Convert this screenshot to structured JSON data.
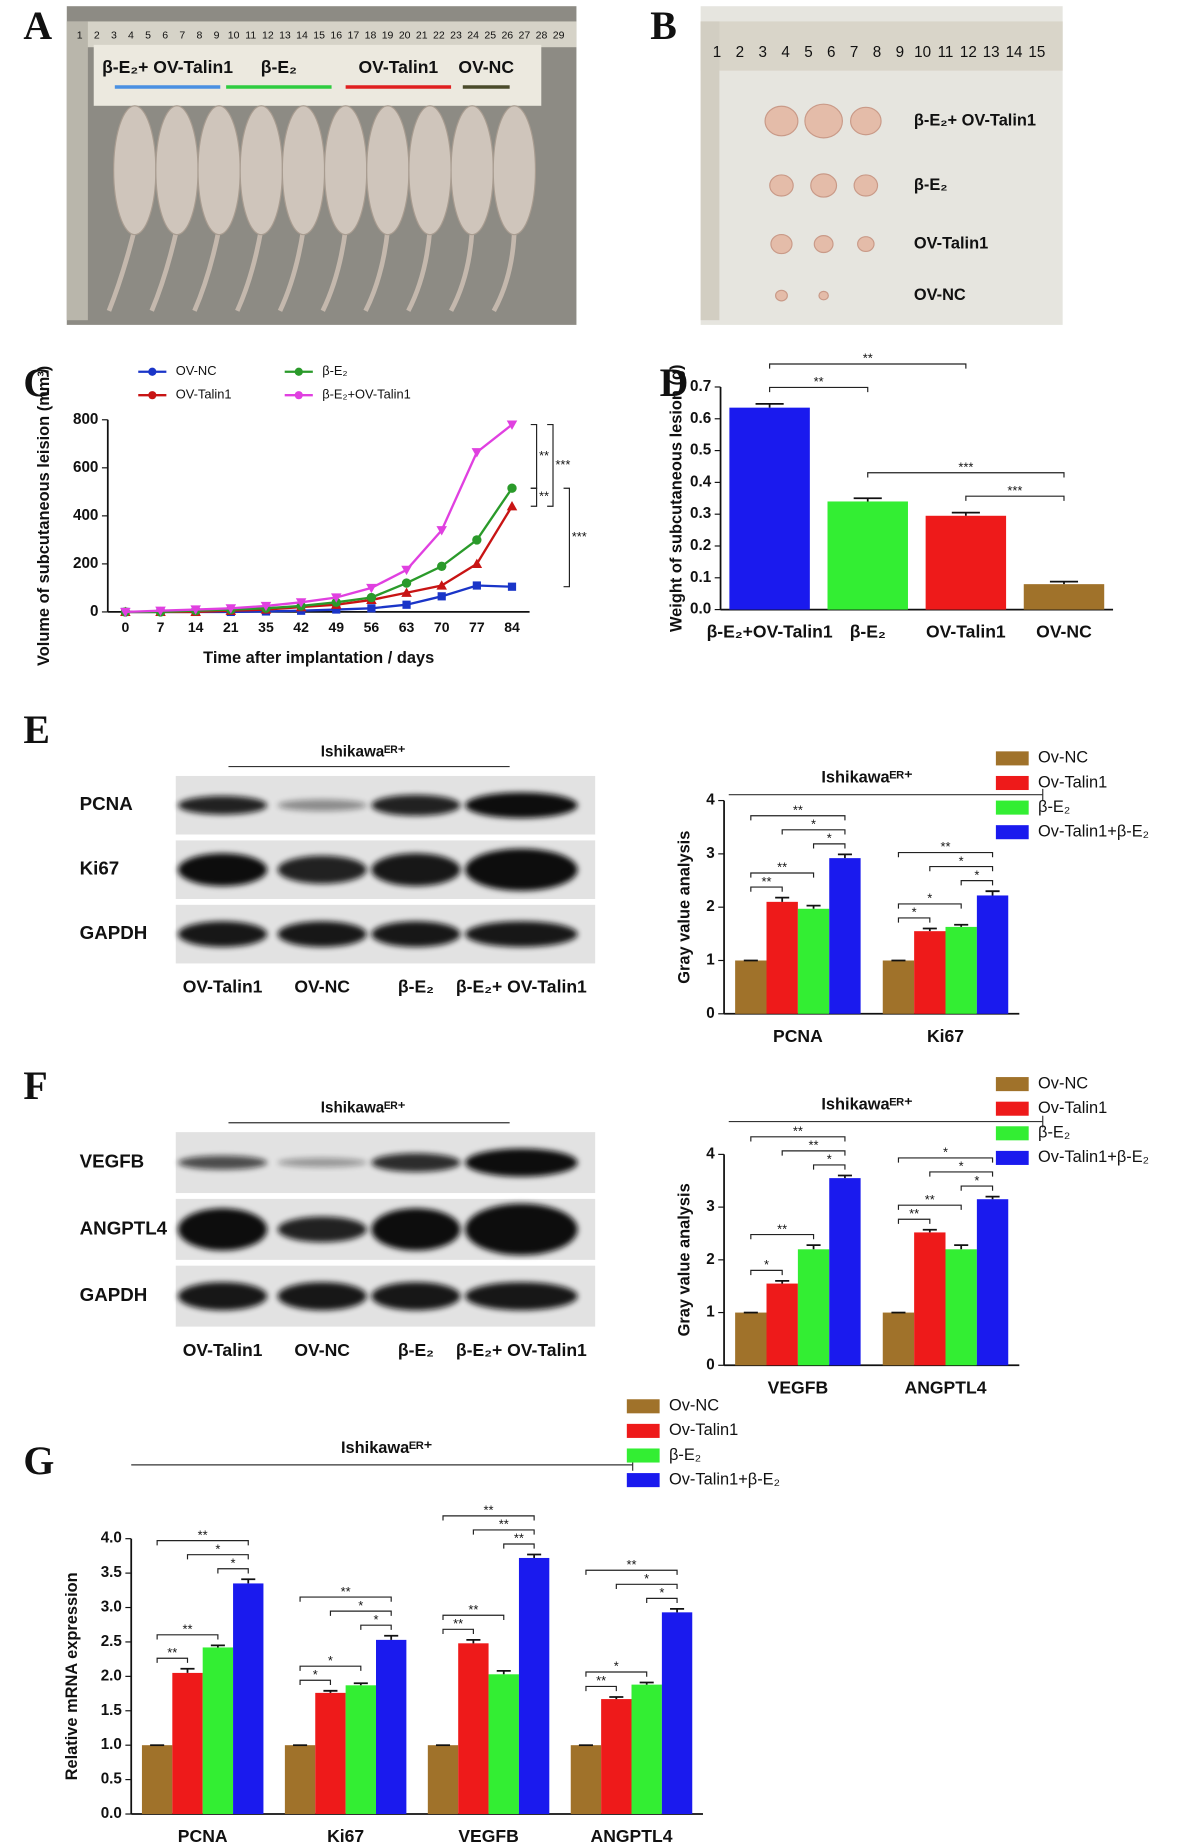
{
  "figures": {
    "A": {
      "panel": "A",
      "ruler": [
        1,
        2,
        3,
        4,
        5,
        6,
        7,
        8,
        9,
        10,
        11,
        12,
        13,
        14,
        15,
        16,
        17,
        18,
        19,
        20,
        21,
        22,
        23,
        24,
        25,
        26,
        27,
        28,
        29
      ],
      "labels": [
        "β-E₂+ OV-Talin1",
        "β-E₂",
        "OV-Talin1",
        "OV-NC"
      ],
      "colors": [
        "#4a90e2",
        "#2ecc40",
        "#e02020",
        "#4a4a2a"
      ]
    },
    "B": {
      "panel": "B",
      "ruler": [
        1,
        2,
        3,
        4,
        5,
        6,
        7,
        8,
        9,
        10,
        11,
        12,
        13,
        14,
        15
      ],
      "labels": [
        "β-E₂+ OV-Talin1",
        "β-E₂",
        "OV-Talin1",
        "OV-NC"
      ]
    },
    "E": {
      "panel": "E",
      "title": "Ishikawaᴱᴿ⁺",
      "rows": [
        "PCNA",
        "Ki67",
        "GAPDH"
      ],
      "lanes": [
        "OV-Talin1",
        "OV-NC",
        "β-E₂",
        "β-E₂+ OV-Talin1"
      ]
    },
    "F": {
      "panel": "F",
      "title": "Ishikawaᴱᴿ⁺",
      "rows": [
        "VEGFB",
        "ANGPTL4",
        "GAPDH"
      ],
      "lanes": [
        "OV-Talin1",
        "OV-NC",
        "β-E₂",
        "β-E₂+ OV-Talin1"
      ]
    }
  },
  "chart_data": [
    {
      "panel": "C",
      "type": "line",
      "categories": [
        "0",
        "7",
        "14",
        "21",
        "35",
        "42",
        "49",
        "56",
        "63",
        "70",
        "77",
        "84"
      ],
      "xlabel": "Time after implantation / days",
      "ylabel": "Volume of subcutaneous leision (mm³)",
      "ylim": [
        0,
        800
      ],
      "yticks": [
        0,
        200,
        400,
        600,
        800
      ],
      "series": [
        {
          "name": "OV-NC",
          "color": "#1a35c8",
          "marker": "square",
          "values": [
            0,
            0,
            0,
            0,
            2,
            5,
            10,
            15,
            30,
            65,
            110,
            105
          ]
        },
        {
          "name": "OV-Talin1",
          "color": "#c81414",
          "marker": "triangle",
          "values": [
            0,
            0,
            0,
            5,
            10,
            20,
            30,
            50,
            80,
            110,
            200,
            440
          ]
        },
        {
          "name": "β-E₂",
          "color": "#2a9a2a",
          "marker": "circle",
          "values": [
            0,
            0,
            5,
            10,
            15,
            25,
            40,
            60,
            120,
            190,
            300,
            515
          ]
        },
        {
          "name": "β-E₂+OV-Talin1",
          "color": "#e040e0",
          "marker": "triangle-down",
          "values": [
            0,
            5,
            10,
            15,
            25,
            40,
            60,
            100,
            175,
            340,
            665,
            780
          ]
        }
      ],
      "annotations": [
        {
          "text": "**",
          "series": [
            3,
            2
          ]
        },
        {
          "text": "**",
          "series": [
            2,
            1
          ]
        },
        {
          "text": "***",
          "series": [
            3,
            1
          ]
        },
        {
          "text": "***",
          "series": [
            2,
            0
          ]
        }
      ]
    },
    {
      "panel": "D",
      "type": "bar",
      "categories": [
        "β-E₂+OV-Talin1",
        "β-E₂",
        "OV-Talin1",
        "OV-NC"
      ],
      "values": [
        0.635,
        0.34,
        0.295,
        0.08
      ],
      "errors": [
        0.012,
        0.01,
        0.01,
        0.008
      ],
      "colors": [
        "#1a1aee",
        "#33ee33",
        "#ee1a1a",
        "#a0722a"
      ],
      "ylabel": "Weight of subcutaneous lesion (g)",
      "ylim": [
        0,
        0.7
      ],
      "yticks": [
        {
          "value": 0,
          "label": "0.0"
        },
        0.1,
        0.2,
        0.3,
        0.4,
        0.5,
        0.6,
        0.7
      ],
      "annotations": [
        {
          "text": "***",
          "between": [
            2,
            3
          ]
        },
        {
          "text": "**",
          "between": [
            0,
            1
          ]
        },
        {
          "text": "***",
          "between": [
            1,
            3
          ]
        },
        {
          "text": "**",
          "between": [
            0,
            2
          ]
        }
      ]
    },
    {
      "type": "grouped_bar",
      "title": "Ishikawaᴱᴿ⁺",
      "categories": [
        "PCNA",
        "Ki67"
      ],
      "ylabel": "Gray value analysis",
      "ylim": [
        0,
        4
      ],
      "yticks": [
        0,
        1,
        2,
        3,
        4
      ],
      "series": [
        {
          "name": "Ov-NC",
          "color": "#a0722a",
          "values": [
            1,
            1
          ],
          "errors": [
            0,
            0
          ]
        },
        {
          "name": "Ov-Talin1",
          "color": "#ee1a1a",
          "values": [
            2.1,
            1.55
          ],
          "errors": [
            0.08,
            0.05
          ]
        },
        {
          "name": "β-E₂",
          "color": "#33ee33",
          "values": [
            1.97,
            1.63
          ],
          "errors": [
            0.06,
            0.04
          ]
        },
        {
          "name": "Ov-Talin1+β-E₂",
          "color": "#1a1aee",
          "values": [
            2.92,
            2.22
          ],
          "errors": [
            0.07,
            0.08
          ]
        }
      ],
      "annotations": [
        {
          "category": 0,
          "text": "**",
          "between": [
            0,
            1
          ]
        },
        {
          "category": 0,
          "text": "**",
          "between": [
            0,
            2
          ]
        },
        {
          "category": 0,
          "text": "*",
          "between": [
            2,
            3
          ]
        },
        {
          "category": 0,
          "text": "*",
          "between": [
            1,
            3
          ]
        },
        {
          "category": 0,
          "text": "**",
          "between": [
            0,
            3
          ]
        },
        {
          "category": 1,
          "text": "*",
          "between": [
            0,
            1
          ]
        },
        {
          "category": 1,
          "text": "*",
          "between": [
            0,
            2
          ]
        },
        {
          "category": 1,
          "text": "*",
          "between": [
            2,
            3
          ]
        },
        {
          "category": 1,
          "text": "*",
          "between": [
            1,
            3
          ]
        },
        {
          "category": 1,
          "text": "**",
          "between": [
            0,
            3
          ]
        }
      ]
    },
    {
      "type": "grouped_bar",
      "title": "Ishikawaᴱᴿ⁺",
      "categories": [
        "VEGFB",
        "ANGPTL4"
      ],
      "ylabel": "Gray value analysis",
      "ylim": [
        0,
        4
      ],
      "yticks": [
        0,
        1,
        2,
        3,
        4
      ],
      "series": [
        {
          "name": "Ov-NC",
          "color": "#a0722a",
          "values": [
            1,
            1
          ],
          "errors": [
            0,
            0
          ]
        },
        {
          "name": "Ov-Talin1",
          "color": "#ee1a1a",
          "values": [
            1.55,
            2.52
          ],
          "errors": [
            0.05,
            0.05
          ]
        },
        {
          "name": "β-E₂",
          "color": "#33ee33",
          "values": [
            2.2,
            2.2
          ],
          "errors": [
            0.08,
            0.08
          ]
        },
        {
          "name": "Ov-Talin1+β-E₂",
          "color": "#1a1aee",
          "values": [
            3.55,
            3.15
          ],
          "errors": [
            0.05,
            0.05
          ]
        }
      ],
      "annotations": [
        {
          "category": 0,
          "text": "*",
          "between": [
            0,
            1
          ]
        },
        {
          "category": 0,
          "text": "**",
          "between": [
            0,
            2
          ]
        },
        {
          "category": 0,
          "text": "*",
          "between": [
            2,
            3
          ]
        },
        {
          "category": 0,
          "text": "**",
          "between": [
            1,
            3
          ]
        },
        {
          "category": 0,
          "text": "**",
          "between": [
            0,
            3
          ]
        },
        {
          "category": 1,
          "text": "**",
          "between": [
            0,
            1
          ]
        },
        {
          "category": 1,
          "text": "**",
          "between": [
            0,
            2
          ]
        },
        {
          "category": 1,
          "text": "*",
          "between": [
            2,
            3
          ]
        },
        {
          "category": 1,
          "text": "*",
          "between": [
            1,
            3
          ]
        },
        {
          "category": 1,
          "text": "*",
          "between": [
            0,
            3
          ]
        }
      ]
    },
    {
      "panel": "G",
      "type": "grouped_bar",
      "title": "Ishikawaᴱᴿ⁺",
      "categories": [
        "PCNA",
        "Ki67",
        "VEGFB",
        "ANGPTL4"
      ],
      "ylabel": "Relative mRNA expression",
      "ylim": [
        0,
        4
      ],
      "yticks": [
        {
          "value": 0,
          "label": "0.0"
        },
        0.5,
        {
          "value": 1,
          "label": "1.0"
        },
        1.5,
        {
          "value": 2,
          "label": "2.0"
        },
        2.5,
        {
          "value": 3,
          "label": "3.0"
        },
        3.5,
        {
          "value": 4,
          "label": "4.0"
        }
      ],
      "series": [
        {
          "name": "Ov-NC",
          "color": "#a0722a",
          "values": [
            1,
            1,
            1,
            1
          ],
          "errors": [
            0,
            0,
            0,
            0
          ]
        },
        {
          "name": "Ov-Talin1",
          "color": "#ee1a1a",
          "values": [
            2.05,
            1.76,
            2.48,
            1.67
          ],
          "errors": [
            0.06,
            0.03,
            0.05,
            0.03
          ]
        },
        {
          "name": "β-E₂",
          "color": "#33ee33",
          "values": [
            2.42,
            1.87,
            2.03,
            1.88
          ],
          "errors": [
            0.03,
            0.03,
            0.05,
            0.03
          ]
        },
        {
          "name": "Ov-Talin1+β-E₂",
          "color": "#1a1aee",
          "values": [
            3.35,
            2.53,
            3.72,
            2.93
          ],
          "errors": [
            0.06,
            0.06,
            0.05,
            0.05
          ]
        }
      ],
      "annotations": [
        {
          "category": 0,
          "text": "**",
          "between": [
            0,
            1
          ]
        },
        {
          "category": 0,
          "text": "**",
          "between": [
            0,
            2
          ]
        },
        {
          "category": 0,
          "text": "*",
          "between": [
            2,
            3
          ]
        },
        {
          "category": 0,
          "text": "*",
          "between": [
            1,
            3
          ]
        },
        {
          "category": 0,
          "text": "**",
          "between": [
            0,
            3
          ]
        },
        {
          "category": 1,
          "text": "*",
          "between": [
            0,
            1
          ]
        },
        {
          "category": 1,
          "text": "*",
          "between": [
            0,
            2
          ]
        },
        {
          "category": 1,
          "text": "*",
          "between": [
            2,
            3
          ]
        },
        {
          "category": 1,
          "text": "*",
          "between": [
            1,
            3
          ]
        },
        {
          "category": 1,
          "text": "**",
          "between": [
            0,
            3
          ]
        },
        {
          "category": 2,
          "text": "**",
          "between": [
            0,
            1
          ]
        },
        {
          "category": 2,
          "text": "**",
          "between": [
            0,
            2
          ]
        },
        {
          "category": 2,
          "text": "**",
          "between": [
            2,
            3
          ]
        },
        {
          "category": 2,
          "text": "**",
          "between": [
            1,
            3
          ]
        },
        {
          "category": 2,
          "text": "**",
          "between": [
            0,
            3
          ]
        },
        {
          "category": 3,
          "text": "**",
          "between": [
            0,
            1
          ]
        },
        {
          "category": 3,
          "text": "*",
          "between": [
            0,
            2
          ]
        },
        {
          "category": 3,
          "text": "*",
          "between": [
            2,
            3
          ]
        },
        {
          "category": 3,
          "text": "*",
          "between": [
            1,
            3
          ]
        },
        {
          "category": 3,
          "text": "**",
          "between": [
            0,
            3
          ]
        }
      ]
    }
  ]
}
